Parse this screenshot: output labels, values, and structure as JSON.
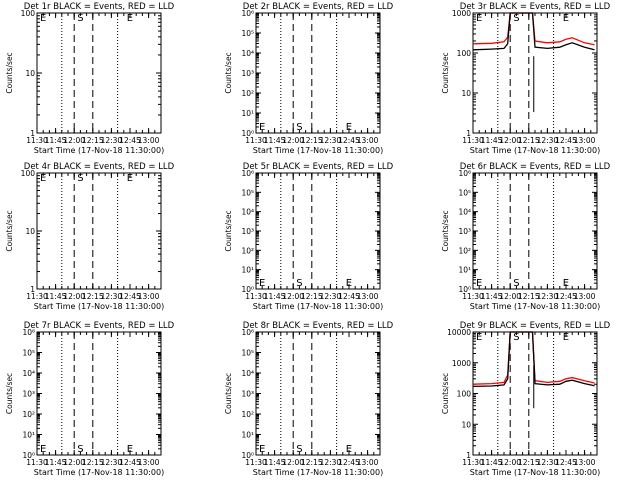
{
  "figure": {
    "title_template": "Det {d} BLACK = Events, RED = LLD",
    "time_ticks": [
      "11:30",
      "11:45",
      "12:00",
      "12:15",
      "12:30",
      "12:45",
      "13:00"
    ],
    "xlabel": "Start Time (17-Nov-18 11:30:00)",
    "ylabel": "Counts/sec",
    "event_colors": {
      "events": "#000000",
      "lld": "#ff0000"
    },
    "marker_labels": {
      "E": "E",
      "S": "S"
    }
  },
  "chart_data": [
    {
      "type": "line",
      "title": "Det 1r BLACK = Events, RED = LLD",
      "ylabel": "Counts/sec",
      "xlabel": "Start Time (17-Nov-18 11:30:00)",
      "yscale": "log",
      "ylim": [
        1,
        100
      ],
      "yticks": [
        "1",
        "10",
        "100"
      ],
      "xlim": [
        "11:30",
        "13:10"
      ],
      "series": []
    },
    {
      "type": "line",
      "title": "Det 2r BLACK = Events, RED = LLD",
      "ylabel": "Counts/sec",
      "xlabel": "Start Time (17-Nov-18 11:30:00)",
      "yscale": "log",
      "ylim": [
        1,
        1000000
      ],
      "yticks": [
        "10⁰",
        "10¹",
        "10²",
        "10³",
        "10⁴",
        "10⁵",
        "10⁶"
      ],
      "xlim": [
        "11:30",
        "13:10"
      ],
      "series": []
    },
    {
      "type": "line",
      "title": "Det 3r BLACK = Events, RED = LLD",
      "ylabel": "Counts/sec",
      "xlabel": "Start Time (17-Nov-18 11:30:00)",
      "yscale": "log",
      "ylim": [
        1,
        1000
      ],
      "yticks": [
        "1",
        "10",
        "100",
        "1000"
      ],
      "xlim": [
        "11:30",
        "13:10"
      ],
      "series": [
        {
          "name": "LLD",
          "color": "#ff0000",
          "x": [
            "11:30",
            "11:45",
            "11:55",
            "11:58",
            "12:00",
            "12:18",
            "12:20",
            "12:30",
            "12:40",
            "12:45",
            "12:50",
            "13:00",
            "13:08"
          ],
          "y": [
            170,
            175,
            190,
            250,
            1000,
            1000,
            200,
            180,
            190,
            220,
            240,
            180,
            160
          ]
        },
        {
          "name": "Events",
          "color": "#000000",
          "x": [
            "11:30",
            "11:45",
            "11:55",
            "11:58",
            "12:00",
            "12:18",
            "12:20",
            "12:30",
            "12:40",
            "12:45",
            "12:50",
            "13:00",
            "13:08"
          ],
          "y": [
            120,
            125,
            130,
            170,
            1000,
            1000,
            140,
            130,
            140,
            160,
            180,
            140,
            120
          ]
        }
      ]
    },
    {
      "type": "line",
      "title": "Det 4r BLACK = Events, RED = LLD",
      "ylabel": "Counts/sec",
      "xlabel": "Start Time (17-Nov-18 11:30:00)",
      "yscale": "log",
      "ylim": [
        1,
        100
      ],
      "yticks": [
        "1",
        "10",
        "100"
      ],
      "xlim": [
        "11:30",
        "13:10"
      ],
      "series": []
    },
    {
      "type": "line",
      "title": "Det 5r BLACK = Events, RED = LLD",
      "ylabel": "Counts/sec",
      "xlabel": "Start Time (17-Nov-18 11:30:00)",
      "yscale": "log",
      "ylim": [
        1,
        1000000
      ],
      "yticks": [
        "10⁰",
        "10¹",
        "10²",
        "10³",
        "10⁴",
        "10⁵",
        "10⁶"
      ],
      "xlim": [
        "11:30",
        "13:10"
      ],
      "series": []
    },
    {
      "type": "line",
      "title": "Det 6r BLACK = Events, RED = LLD",
      "ylabel": "Counts/sec",
      "xlabel": "Start Time (17-Nov-18 11:30:00)",
      "yscale": "log",
      "ylim": [
        1,
        1000000
      ],
      "yticks": [
        "10⁰",
        "10¹",
        "10²",
        "10³",
        "10⁴",
        "10⁵",
        "10⁶"
      ],
      "xlim": [
        "11:30",
        "13:10"
      ],
      "series": []
    },
    {
      "type": "line",
      "title": "Det 7r BLACK = Events, RED = LLD",
      "ylabel": "Counts/sec",
      "xlabel": "Start Time (17-Nov-18 11:30:00)",
      "yscale": "log",
      "ylim": [
        1,
        1000000
      ],
      "yticks": [
        "10⁰",
        "10¹",
        "10²",
        "10³",
        "10⁴",
        "10⁵",
        "10⁶"
      ],
      "xlim": [
        "11:30",
        "13:10"
      ],
      "series": []
    },
    {
      "type": "line",
      "title": "Det 8r BLACK = Events, RED = LLD",
      "ylabel": "Counts/sec",
      "xlabel": "Start Time (17-Nov-18 11:30:00)",
      "yscale": "log",
      "ylim": [
        1,
        1000000
      ],
      "yticks": [
        "10⁰",
        "10¹",
        "10²",
        "10³",
        "10⁴",
        "10⁵",
        "10⁶"
      ],
      "xlim": [
        "11:30",
        "13:10"
      ],
      "series": []
    },
    {
      "type": "line",
      "title": "Det 9r BLACK = Events, RED = LLD",
      "ylabel": "Counts/sec",
      "xlabel": "Start Time (17-Nov-18 11:30:00)",
      "yscale": "log",
      "ylim": [
        1,
        10000
      ],
      "yticks": [
        "1",
        "10",
        "100",
        "1000",
        "10000"
      ],
      "xlim": [
        "11:30",
        "13:10"
      ],
      "series": [
        {
          "name": "LLD",
          "color": "#ff0000",
          "x": [
            "11:30",
            "11:45",
            "11:55",
            "11:58",
            "12:00",
            "12:18",
            "12:20",
            "12:30",
            "12:40",
            "12:45",
            "12:50",
            "13:00",
            "13:08"
          ],
          "y": [
            200,
            210,
            230,
            400,
            10000,
            10000,
            260,
            230,
            250,
            300,
            330,
            260,
            220
          ]
        },
        {
          "name": "Events",
          "color": "#000000",
          "x": [
            "11:30",
            "11:45",
            "11:55",
            "11:58",
            "12:00",
            "12:18",
            "12:20",
            "12:30",
            "12:40",
            "12:45",
            "12:50",
            "13:00",
            "13:08"
          ],
          "y": [
            170,
            175,
            190,
            300,
            10000,
            10000,
            210,
            190,
            200,
            250,
            270,
            210,
            180
          ]
        }
      ]
    }
  ],
  "markers": {
    "dotted_times": [
      "11:50",
      "12:35"
    ],
    "dashed_times": [
      "12:00",
      "12:15"
    ],
    "labels": [
      {
        "text": "E",
        "time": "11:30"
      },
      {
        "text": "S",
        "time": "12:00"
      },
      {
        "text": "E",
        "time": "12:40"
      }
    ]
  }
}
